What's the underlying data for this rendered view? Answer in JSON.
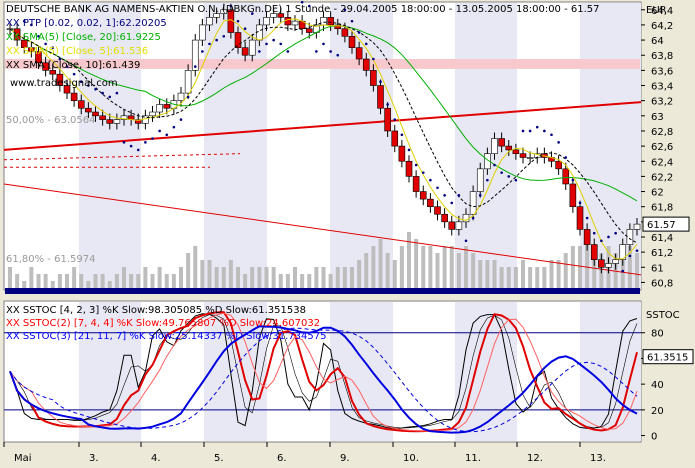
{
  "chart_data": [
    {
      "type": "candlestick",
      "title": "DEUTSCHE BANK AG NAMENS-AKTIEN O.N. (DBKGn.DE) 1 Stunde - 29.04.2005 18:00:00 - 13.05.2005 18:00:00 - 61.57",
      "currency": "EUR",
      "ylim": [
        60.7,
        64.45
      ],
      "yticks": [
        "60,8",
        "61",
        "61,2",
        "61,4",
        "61,6",
        "61,8",
        "62",
        "62,2",
        "62,4",
        "62,6",
        "62,8",
        "63",
        "63,2",
        "63,4",
        "63,6",
        "63,8",
        "64",
        "64,2",
        "64,4"
      ],
      "xticks": [
        "Mai",
        "3.",
        "4.",
        "5.",
        "6.",
        "9.",
        "10.",
        "11.",
        "12.",
        "13."
      ],
      "last_value": "61.57",
      "overlays": [
        {
          "name": "XX PTP [0.02, 0.02, 1]:62.20205",
          "color": "#000080"
        },
        {
          "name": "XX SMA(5) [Close, 20]:61.9225",
          "color": "#00b000"
        },
        {
          "name": "XX SMA(5) [Close, 5]:61.536",
          "color": "#e0e000"
        },
        {
          "name": "XX SMA [Close, 10]:61.439",
          "color": "#000000"
        }
      ],
      "annotations": [
        "www.tradesignal.com",
        "50,00% - 63.0564",
        "61,80% - 61.5974"
      ],
      "series": [
        {
          "name": "Price (approx., 1h)",
          "values": [
            64.15,
            64.0,
            63.9,
            63.85,
            63.7,
            63.6,
            63.55,
            63.4,
            63.3,
            63.2,
            63.1,
            63.05,
            63.0,
            62.95,
            62.9,
            62.95,
            63.0,
            62.95,
            62.9,
            63.0,
            63.05,
            63.15,
            63.1,
            63.2,
            63.3,
            63.6,
            64.0,
            64.2,
            64.3,
            64.35,
            64.4,
            64.1,
            63.9,
            63.8,
            64.0,
            64.2,
            64.3,
            64.35,
            64.3,
            64.2,
            64.25,
            64.15,
            64.1,
            64.2,
            64.3,
            64.2,
            64.15,
            64.05,
            63.9,
            63.75,
            63.6,
            63.4,
            63.1,
            62.8,
            62.6,
            62.4,
            62.2,
            62.0,
            61.9,
            61.8,
            61.7,
            61.6,
            61.5,
            61.6,
            61.7,
            62.0,
            62.3,
            62.5,
            62.7,
            62.6,
            62.55,
            62.5,
            62.45,
            62.45,
            62.5,
            62.45,
            62.4,
            62.3,
            62.1,
            61.8,
            61.5,
            61.3,
            61.1,
            61.0,
            61.05,
            61.1,
            61.3,
            61.5,
            61.57
          ]
        }
      ]
    },
    {
      "type": "line",
      "title": "SSTOC",
      "ylim": [
        -5,
        100
      ],
      "yticks": [
        "0",
        "20",
        "40",
        "60",
        "80"
      ],
      "last_value": "61.3515",
      "series": [
        {
          "name": "XX SSTOC [4, 2, 3] %K Slow:98.305085 %D Slow:61.351538",
          "color": "#000000"
        },
        {
          "name": "XX SSTOC(2) [7, 4, 4] %K Slow:49.765807 %D Slow:24.607032",
          "color": "#ff0000"
        },
        {
          "name": "XX SSTOC(3) [21, 11, 7] %K Slow:25.14337 %D Slow:31.734575",
          "color": "#0000ff"
        }
      ]
    }
  ]
}
